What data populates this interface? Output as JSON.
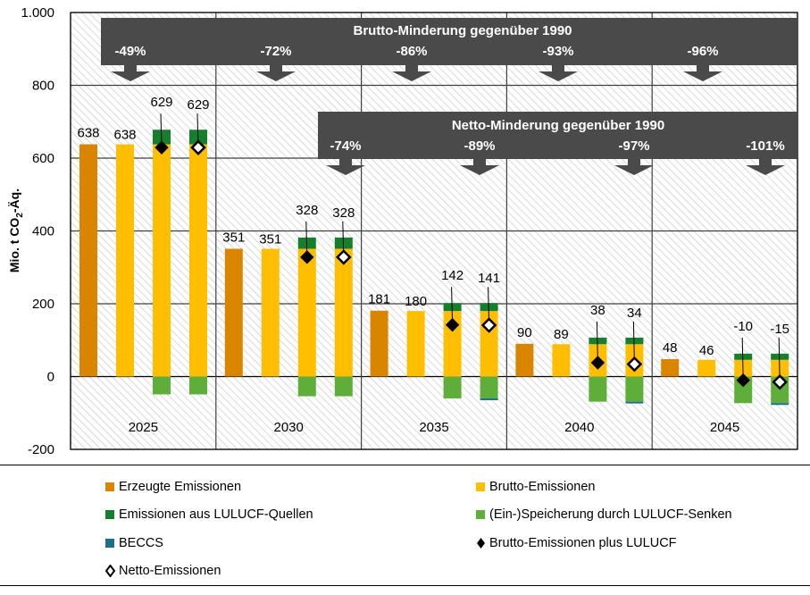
{
  "chart_data": {
    "type": "bar",
    "title": "",
    "xlabel": "",
    "ylabel": "Mio. t CO2-Äq.",
    "ylabel_main": "Mio. t CO",
    "ylabel_sub": "2",
    "ylabel_tail": "-Äq.",
    "ylim": [
      -200,
      1000
    ],
    "yticks": [
      1000,
      800,
      600,
      400,
      200,
      0,
      -200
    ],
    "ytick_labels": [
      "1.000",
      "800",
      "600",
      "400",
      "200",
      "0",
      "-200"
    ],
    "grid": true,
    "categories": [
      "2025",
      "2030",
      "2035",
      "2040",
      "2045"
    ],
    "series": [
      {
        "name": "Erzeugte Emissionen",
        "key": "erzeugt",
        "color": "#D98500",
        "values": [
          638,
          351,
          181,
          90,
          48
        ]
      },
      {
        "name": "Brutto-Emissionen",
        "key": "brutto",
        "color": "#FFBE00",
        "values": [
          638,
          351,
          180,
          89,
          46
        ]
      },
      {
        "name": "Emissionen aus LULUCF-Quellen",
        "key": "lulucf_quellen",
        "color": "#167F2E",
        "values": [
          40,
          31,
          22,
          18,
          17
        ]
      },
      {
        "name": "(Ein-)Speicherung durch LULUCF-Senken",
        "key": "lulucf_senken",
        "color": "#5FAE3A",
        "values": [
          -49,
          -54,
          -60,
          -69,
          -73
        ]
      },
      {
        "name": "BECCS",
        "key": "beccs",
        "color": "#1F6E8C",
        "values": [
          0,
          0,
          -1,
          -4,
          -5
        ]
      },
      {
        "name": "Brutto-Emissionen plus LULUCF",
        "key": "brutto_plus_lulucf",
        "marker": "filled-diamond",
        "values": [
          629,
          328,
          142,
          38,
          -10
        ]
      },
      {
        "name": "Netto-Emissionen",
        "key": "netto",
        "marker": "open-diamond",
        "values": [
          629,
          328,
          141,
          34,
          -15
        ]
      }
    ],
    "bar_labels": {
      "erzeugt": [
        "638",
        "351",
        "181",
        "90",
        "48"
      ],
      "brutto": [
        "638",
        "351",
        "180",
        "89",
        "46"
      ],
      "brutto_plus_lulucf": [
        "629",
        "328",
        "142",
        "38",
        "-10"
      ],
      "netto": [
        "629",
        "328",
        "141",
        "34",
        "-15"
      ]
    },
    "annotations": {
      "brutto_banner": {
        "title": "Brutto-Minderung gegenüber 1990",
        "values": [
          "-49%",
          "-72%",
          "-86%",
          "-93%",
          "-96%"
        ]
      },
      "netto_banner": {
        "title": "Netto-Minderung gegenüber 1990",
        "values": [
          "-74%",
          "-89%",
          "-97%",
          "-101%"
        ],
        "categories": [
          "2030",
          "2035",
          "2040",
          "2045"
        ]
      }
    },
    "legend_position": "bottom"
  },
  "legend": {
    "items": [
      {
        "label": "Erzeugte Emissionen",
        "type": "swatch",
        "color": "#D98500"
      },
      {
        "label": "Brutto-Emissionen",
        "type": "swatch",
        "color": "#FFBE00"
      },
      {
        "label": "Emissionen aus LULUCF-Quellen",
        "type": "swatch",
        "color": "#167F2E"
      },
      {
        "label": "(Ein-)Speicherung durch LULUCF-Senken",
        "type": "swatch",
        "color": "#5FAE3A"
      },
      {
        "label": "BECCS",
        "type": "swatch",
        "color": "#1F6E8C"
      },
      {
        "label": "Brutto-Emissionen plus LULUCF",
        "type": "filled-diamond"
      },
      {
        "label": "Netto-Emissionen",
        "type": "open-diamond"
      }
    ]
  },
  "colors": {
    "banner": "#4A4A4A",
    "grid": "#404040",
    "hatch": "#D0D0D0"
  }
}
